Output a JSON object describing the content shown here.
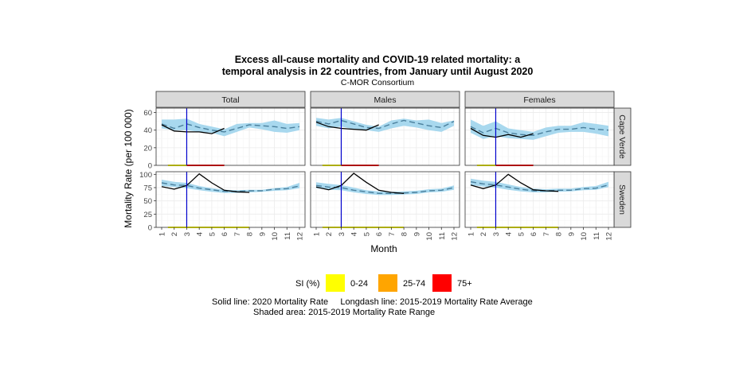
{
  "title_line1": "Excess all-cause mortality and COVID-19 related mortality: a",
  "title_line2": "temporal analysis in 22 countries, from January until August 2020",
  "subtitle": "C-MOR Consortium",
  "legend": {
    "title": "SI (%)",
    "items": [
      {
        "label": "0-24",
        "color": "#ffff00"
      },
      {
        "label": "25-74",
        "color": "#ffa500"
      },
      {
        "label": "75+",
        "color": "#ff0000"
      }
    ],
    "note_line1": "Solid line: 2020 Mortality Rate     Longdash line: 2015-2019 Mortality Rate Average",
    "note_line2": "Shaded area: 2015-2019 Mortality Rate Range"
  },
  "colors": {
    "range_fill": "#a8d8ee",
    "avg_line": "#4a7f9c",
    "line_2020": "#000000",
    "vline": "#0000cc",
    "strip_fill": "#d9d9d9"
  },
  "chart_data": {
    "type": "line",
    "xlabel": "Month",
    "ylabel": "Mortality Rate (per 100 000)",
    "x": [
      1,
      2,
      3,
      4,
      5,
      6,
      7,
      8,
      9,
      10,
      11,
      12
    ],
    "vline_x": 3,
    "columns": [
      "Total",
      "Males",
      "Females"
    ],
    "rows": [
      {
        "name": "Cape Verde",
        "ylim": [
          0,
          65
        ],
        "yticks": [
          0,
          20,
          40,
          60
        ],
        "panels": [
          {
            "column": "Total",
            "range_lo": [
              42,
              40,
              40,
              38,
              37,
              33,
              38,
              43,
              41,
              38,
              37,
              40
            ],
            "range_hi": [
              52,
              52,
              53,
              47,
              44,
              41,
              47,
              48,
              48,
              51,
              47,
              48
            ],
            "avg": [
              47,
              42,
              47,
              43,
              40,
              38,
              42,
              46,
              45,
              44,
              42,
              44
            ],
            "y2020": [
              46,
              39,
              38,
              38,
              36,
              42
            ],
            "si": [
              {
                "from": 1.5,
                "to": 3.0,
                "level": "0-24"
              },
              {
                "from": 3.0,
                "to": 6.0,
                "level": "75+"
              }
            ]
          },
          {
            "column": "Males",
            "range_lo": [
              45,
              42,
              44,
              41,
              40,
              38,
              42,
              45,
              43,
              40,
              38,
              45
            ],
            "range_hi": [
              54,
              52,
              54,
              50,
              46,
              44,
              51,
              53,
              51,
              52,
              48,
              51
            ],
            "avg": [
              50,
              47,
              51,
              47,
              43,
              42,
              47,
              51,
              48,
              45,
              43,
              50
            ],
            "y2020": [
              49,
              44,
              42,
              41,
              40,
              46
            ],
            "si": [
              {
                "from": 1.5,
                "to": 3.0,
                "level": "0-24"
              },
              {
                "from": 3.0,
                "to": 6.0,
                "level": "75+"
              }
            ]
          },
          {
            "column": "Females",
            "range_lo": [
              37,
              30,
              33,
              31,
              30,
              29,
              33,
              37,
              38,
              38,
              36,
              33
            ],
            "range_hi": [
              52,
              45,
              50,
              42,
              40,
              38,
              43,
              45,
              45,
              49,
              47,
              45
            ],
            "avg": [
              44,
              37,
              42,
              37,
              35,
              34,
              38,
              41,
              41,
              43,
              41,
              40
            ],
            "y2020": [
              42,
              34,
              32,
              35,
              32,
              36
            ],
            "si": [
              {
                "from": 1.5,
                "to": 3.0,
                "level": "0-24"
              },
              {
                "from": 3.0,
                "to": 6.0,
                "level": "75+"
              }
            ]
          }
        ]
      },
      {
        "name": "Sweden",
        "ylim": [
          0,
          105
        ],
        "yticks": [
          0,
          25,
          50,
          75,
          100
        ],
        "panels": [
          {
            "column": "Total",
            "range_lo": [
              78,
              76,
              74,
              70,
              67,
              65,
              65,
              66,
              67,
              69,
              70,
              74
            ],
            "range_hi": [
              90,
              86,
              84,
              78,
              74,
              71,
              70,
              71,
              71,
              74,
              76,
              84
            ],
            "avg": [
              84,
              80,
              79,
              74,
              71,
              68,
              68,
              69,
              69,
              72,
              73,
              78
            ],
            "y2020": [
              77,
              72,
              79,
              101,
              84,
              70,
              67,
              66
            ],
            "si": [
              {
                "from": 1.5,
                "to": 3.0,
                "level": "0-24"
              },
              {
                "from": 3.0,
                "to": 8.0,
                "level": "0-24"
              }
            ]
          },
          {
            "column": "Males",
            "range_lo": [
              74,
              71,
              70,
              66,
              63,
              61,
              61,
              62,
              63,
              66,
              67,
              71
            ],
            "range_hi": [
              85,
              82,
              80,
              75,
              70,
              68,
              67,
              68,
              69,
              72,
              73,
              79
            ],
            "avg": [
              79,
              76,
              75,
              70,
              67,
              64,
              64,
              65,
              66,
              69,
              70,
              75
            ],
            "y2020": [
              76,
              71,
              79,
              102,
              85,
              70,
              66,
              64
            ],
            "si": [
              {
                "from": 1.5,
                "to": 3.0,
                "level": "0-24"
              },
              {
                "from": 3.0,
                "to": 8.0,
                "level": "0-24"
              }
            ]
          },
          {
            "column": "Females",
            "range_lo": [
              80,
              77,
              75,
              71,
              68,
              66,
              66,
              67,
              68,
              70,
              71,
              76
            ],
            "range_hi": [
              92,
              88,
              86,
              81,
              76,
              73,
              72,
              73,
              73,
              76,
              78,
              86
            ],
            "avg": [
              86,
              82,
              80,
              76,
              72,
              69,
              69,
              70,
              70,
              73,
              74,
              80
            ],
            "y2020": [
              80,
              73,
              80,
              100,
              84,
              71,
              69,
              68
            ],
            "si": [
              {
                "from": 1.5,
                "to": 3.0,
                "level": "0-24"
              },
              {
                "from": 3.0,
                "to": 8.0,
                "level": "0-24"
              }
            ]
          }
        ]
      }
    ]
  }
}
